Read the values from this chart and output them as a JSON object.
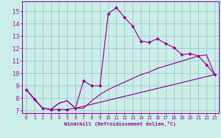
{
  "xlabel": "Windchill (Refroidissement éolien,°C)",
  "bg_color": "#cceee8",
  "line_color": "#990099",
  "grid_color": "#99cccc",
  "xlim": [
    -0.5,
    23.5
  ],
  "ylim": [
    6.8,
    15.8
  ],
  "xticks": [
    0,
    1,
    2,
    3,
    4,
    5,
    6,
    7,
    8,
    9,
    10,
    11,
    12,
    13,
    14,
    15,
    16,
    17,
    18,
    19,
    20,
    21,
    22,
    23
  ],
  "yticks": [
    7,
    8,
    9,
    10,
    11,
    12,
    13,
    14,
    15
  ],
  "series1_x": [
    0,
    1,
    2,
    3,
    4,
    5,
    6,
    7,
    8,
    9,
    10,
    11,
    12,
    13,
    14,
    15,
    16,
    17,
    18,
    19,
    20,
    21,
    22,
    23
  ],
  "series1_y": [
    8.7,
    7.9,
    7.2,
    7.1,
    7.1,
    7.1,
    7.2,
    9.4,
    9.0,
    9.0,
    14.8,
    15.3,
    14.5,
    13.8,
    12.6,
    12.5,
    12.8,
    12.4,
    12.1,
    11.5,
    11.6,
    11.4,
    10.7,
    9.9
  ],
  "series2_x": [
    0,
    2,
    3,
    4,
    5,
    6,
    23
  ],
  "series2_y": [
    8.7,
    7.2,
    7.1,
    7.6,
    7.8,
    7.2,
    9.9
  ],
  "series3_x": [
    0,
    2,
    3,
    4,
    5,
    6,
    7,
    8,
    9,
    10,
    11,
    12,
    13,
    14,
    15,
    16,
    17,
    18,
    19,
    20,
    21,
    22,
    23
  ],
  "series3_y": [
    8.7,
    7.2,
    7.1,
    7.6,
    7.8,
    7.2,
    7.2,
    7.8,
    8.3,
    8.7,
    9.0,
    9.3,
    9.6,
    9.9,
    10.1,
    10.4,
    10.6,
    10.8,
    11.0,
    11.2,
    11.4,
    11.5,
    9.9
  ]
}
